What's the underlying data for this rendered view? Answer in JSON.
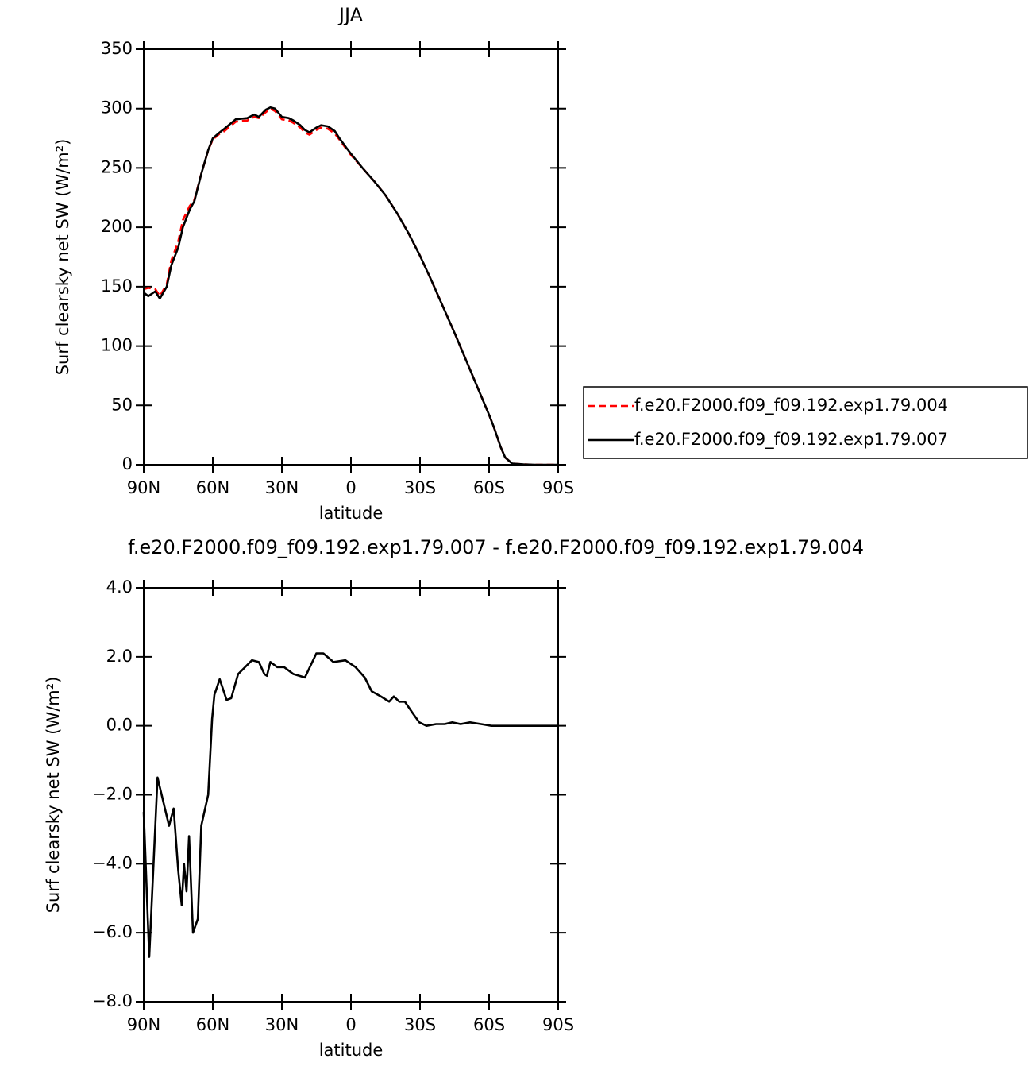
{
  "chart_data": [
    {
      "type": "line",
      "title": "JJA",
      "xlabel": "latitude",
      "ylabel": "Surf clearsky net SW (W/m²)",
      "xlim": [
        90,
        -90
      ],
      "xticks": [
        {
          "value": 90,
          "label": "90N"
        },
        {
          "value": 60,
          "label": "60N"
        },
        {
          "value": 30,
          "label": "30N"
        },
        0,
        {
          "value": -30,
          "label": "30S"
        },
        {
          "value": -60,
          "label": "60S"
        },
        {
          "value": -90,
          "label": "90S"
        }
      ],
      "ylim": [
        0,
        350
      ],
      "yticks": [
        0,
        50,
        100,
        150,
        200,
        250,
        300,
        350
      ],
      "legend": "right",
      "x": [
        90,
        88,
        85,
        83,
        80,
        78,
        75,
        73,
        70,
        68,
        65,
        62,
        60,
        57,
        55,
        50,
        45,
        42,
        40,
        37,
        35,
        33,
        30,
        27,
        25,
        22,
        20,
        18,
        15,
        13,
        10,
        7,
        5,
        2,
        0,
        -5,
        -10,
        -15,
        -20,
        -25,
        -30,
        -35,
        -40,
        -45,
        -50,
        -55,
        -60,
        -62,
        -65,
        -67,
        -70,
        -75,
        -80,
        -85,
        -90
      ],
      "series": [
        {
          "name": "f.e20.F2000.f09_f09.192.exp1.79.004",
          "color": "#ff0000",
          "dash": true,
          "values": [
            148,
            149,
            148,
            142,
            152,
            172,
            188,
            206,
            218,
            223,
            245,
            265,
            274,
            279,
            281,
            289,
            290,
            293,
            292,
            297,
            300,
            298,
            291,
            290,
            288,
            284,
            280,
            278,
            282,
            284,
            283,
            279,
            274,
            266,
            261,
            250,
            239,
            227,
            212,
            195,
            176,
            155,
            133,
            111,
            88,
            65,
            42,
            32,
            15,
            6,
            1,
            0.3,
            0,
            0,
            0
          ]
        },
        {
          "name": "f.e20.F2000.f09_f09.192.exp1.79.007",
          "color": "#000000",
          "dash": false,
          "values": [
            145,
            142,
            146,
            140,
            150,
            168,
            183,
            200,
            215,
            222,
            245,
            265,
            275,
            280,
            283,
            291,
            292,
            295,
            293,
            299,
            301,
            300,
            293,
            292,
            290,
            286,
            282,
            280,
            284,
            286,
            285,
            281,
            275,
            267,
            262,
            250,
            239,
            227,
            212,
            195,
            176,
            155,
            133,
            111,
            88,
            65,
            42,
            32,
            15,
            6,
            1,
            0.3,
            0,
            0,
            0
          ]
        }
      ]
    },
    {
      "type": "line",
      "title": "f.e20.F2000.f09_f09.192.exp1.79.007 - f.e20.F2000.f09_f09.192.exp1.79.004",
      "xlabel": "latitude",
      "ylabel": "Surf clearsky net SW (W/m²)",
      "xlim": [
        90,
        -90
      ],
      "xticks": [
        {
          "value": 90,
          "label": "90N"
        },
        {
          "value": 60,
          "label": "60N"
        },
        {
          "value": 30,
          "label": "30N"
        },
        0,
        {
          "value": -30,
          "label": "30S"
        },
        {
          "value": -60,
          "label": "60S"
        },
        {
          "value": -90,
          "label": "90S"
        }
      ],
      "ylim": [
        -8,
        4
      ],
      "yticks": [
        {
          "value": -8,
          "label": "−8.0"
        },
        {
          "value": -6,
          "label": "−6.0"
        },
        {
          "value": -4,
          "label": "−4.0"
        },
        {
          "value": -2,
          "label": "−2.0"
        },
        {
          "value": 0,
          "label": "0.0"
        },
        {
          "value": 2,
          "label": "2.0"
        },
        {
          "value": 4,
          "label": "4.0"
        }
      ],
      "x": [
        90,
        87.6,
        84,
        79,
        77,
        75,
        73.5,
        72.5,
        71.4,
        70.3,
        68.6,
        66.5,
        65,
        62,
        60.3,
        59.3,
        57,
        54,
        52,
        49,
        46,
        43,
        40,
        37.6,
        36.5,
        35,
        32,
        29,
        25,
        20,
        15,
        12,
        7.6,
        2.4,
        -2,
        -6,
        -9,
        -13,
        -16.6,
        -18.6,
        -21,
        -23.4,
        -27,
        -29.7,
        -32.8,
        -37,
        -40.7,
        -44,
        -47.6,
        -51.7,
        -56.5,
        -61,
        -90
      ],
      "series": [
        {
          "color": "#000000",
          "dash": false,
          "values": [
            -2.5,
            -6.7,
            -1.5,
            -2.9,
            -2.4,
            -4.2,
            -5.2,
            -4,
            -4.8,
            -3.2,
            -6,
            -5.6,
            -2.9,
            -2,
            0.2,
            0.9,
            1.35,
            0.75,
            0.8,
            1.5,
            1.7,
            1.9,
            1.85,
            1.5,
            1.45,
            1.85,
            1.7,
            1.7,
            1.5,
            1.4,
            2.1,
            2.1,
            1.85,
            1.9,
            1.7,
            1.4,
            1.0,
            0.85,
            0.7,
            0.85,
            0.7,
            0.7,
            0.35,
            0.1,
            0,
            0.05,
            0.05,
            0.1,
            0.05,
            0.1,
            0.05,
            0,
            0
          ]
        }
      ]
    }
  ]
}
